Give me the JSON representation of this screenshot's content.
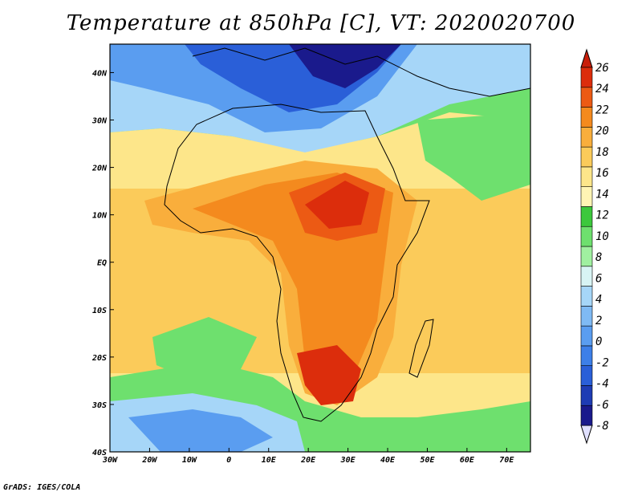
{
  "title": "Temperature at 850hPa [C], VT: 2020020700",
  "footer": "GrADS: IGES/COLA",
  "map": {
    "lon_range": [
      -30,
      76
    ],
    "lat_range": [
      -40,
      46
    ],
    "x_ticks": [
      "30W",
      "20W",
      "10W",
      "0",
      "10E",
      "20E",
      "30E",
      "40E",
      "50E",
      "60E",
      "70E"
    ],
    "y_ticks": [
      "40S",
      "30S",
      "20S",
      "10S",
      "EQ",
      "10N",
      "20N",
      "30N",
      "40N"
    ]
  },
  "colorbar": {
    "labels": [
      "-8",
      "-6",
      "-4",
      "-2",
      "0",
      "2",
      "4",
      "6",
      "8",
      "10",
      "12",
      "14",
      "16",
      "18",
      "20",
      "22",
      "24",
      "26"
    ],
    "colors": [
      "#1a1a8c",
      "#1e3cb4",
      "#2a5fd8",
      "#3d7fe8",
      "#5a9df0",
      "#7fbaf4",
      "#a6d6f8",
      "#d8f4f4",
      "#a0f0a0",
      "#6ee06e",
      "#3cc83c",
      "#fff5b4",
      "#fde68a",
      "#fbcb5a",
      "#f9ae3c",
      "#f48a1e",
      "#ec5a14",
      "#dc2d0c"
    ],
    "low_cap": "#e0e0ff",
    "high_cap": "#c81e0a"
  }
}
